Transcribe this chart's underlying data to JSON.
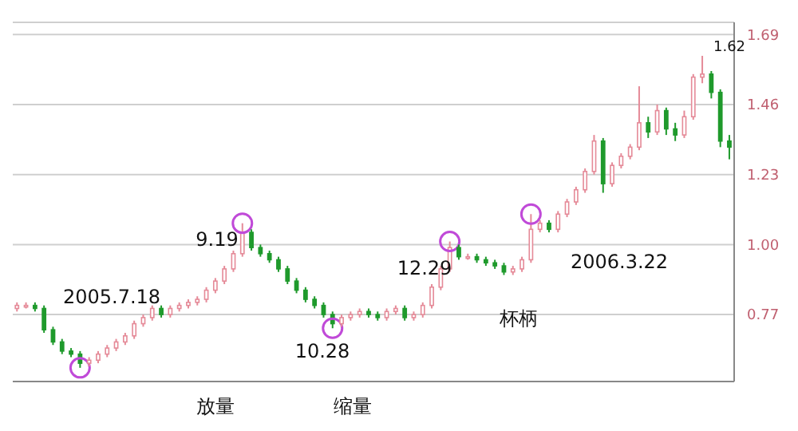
{
  "chart_data": {
    "type": "candlestick",
    "categories": [
      null,
      null,
      null,
      null,
      null,
      null,
      null,
      null,
      null,
      null,
      null,
      null,
      null,
      null,
      null,
      null,
      null,
      null,
      null,
      null,
      null,
      null,
      null,
      null,
      null,
      null,
      null,
      null,
      null,
      null,
      null,
      null,
      null,
      null,
      null,
      null,
      null,
      null,
      null,
      null,
      null,
      null,
      null,
      null,
      null,
      null,
      null,
      null,
      null,
      null,
      null,
      null,
      null,
      null,
      null,
      null,
      null,
      null,
      null,
      null,
      null,
      null,
      null,
      null,
      null,
      null,
      null,
      null,
      null,
      null,
      null,
      null,
      null,
      null,
      null,
      null,
      null,
      null,
      null,
      null
    ],
    "ohlc": [
      [
        0.79,
        0.81,
        0.78,
        0.8
      ],
      [
        0.8,
        0.81,
        0.79,
        0.8
      ],
      [
        0.8,
        0.81,
        0.78,
        0.79
      ],
      [
        0.79,
        0.8,
        0.71,
        0.72
      ],
      [
        0.72,
        0.73,
        0.67,
        0.68
      ],
      [
        0.68,
        0.69,
        0.64,
        0.65
      ],
      [
        0.65,
        0.66,
        0.63,
        0.64
      ],
      [
        0.64,
        0.65,
        0.595,
        0.61
      ],
      [
        0.61,
        0.63,
        0.6,
        0.62
      ],
      [
        0.62,
        0.65,
        0.61,
        0.64
      ],
      [
        0.64,
        0.67,
        0.63,
        0.66
      ],
      [
        0.66,
        0.69,
        0.65,
        0.68
      ],
      [
        0.68,
        0.71,
        0.67,
        0.7
      ],
      [
        0.7,
        0.75,
        0.69,
        0.74
      ],
      [
        0.74,
        0.77,
        0.73,
        0.76
      ],
      [
        0.76,
        0.8,
        0.75,
        0.79
      ],
      [
        0.79,
        0.8,
        0.76,
        0.77
      ],
      [
        0.77,
        0.8,
        0.76,
        0.79
      ],
      [
        0.79,
        0.81,
        0.78,
        0.8
      ],
      [
        0.8,
        0.82,
        0.79,
        0.81
      ],
      [
        0.81,
        0.83,
        0.8,
        0.82
      ],
      [
        0.82,
        0.86,
        0.81,
        0.85
      ],
      [
        0.85,
        0.89,
        0.84,
        0.88
      ],
      [
        0.88,
        0.93,
        0.87,
        0.92
      ],
      [
        0.92,
        0.98,
        0.91,
        0.97
      ],
      [
        0.97,
        1.07,
        0.96,
        1.04
      ],
      [
        1.04,
        1.05,
        0.98,
        0.99
      ],
      [
        0.99,
        1.0,
        0.96,
        0.97
      ],
      [
        0.97,
        0.98,
        0.94,
        0.95
      ],
      [
        0.95,
        0.96,
        0.91,
        0.92
      ],
      [
        0.92,
        0.93,
        0.87,
        0.88
      ],
      [
        0.88,
        0.89,
        0.84,
        0.85
      ],
      [
        0.85,
        0.86,
        0.81,
        0.82
      ],
      [
        0.82,
        0.83,
        0.79,
        0.8
      ],
      [
        0.8,
        0.81,
        0.76,
        0.77
      ],
      [
        0.77,
        0.78,
        0.725,
        0.74
      ],
      [
        0.74,
        0.77,
        0.73,
        0.76
      ],
      [
        0.76,
        0.78,
        0.75,
        0.77
      ],
      [
        0.77,
        0.79,
        0.76,
        0.78
      ],
      [
        0.78,
        0.79,
        0.76,
        0.77
      ],
      [
        0.77,
        0.78,
        0.75,
        0.76
      ],
      [
        0.76,
        0.79,
        0.75,
        0.78
      ],
      [
        0.78,
        0.8,
        0.77,
        0.79
      ],
      [
        0.79,
        0.8,
        0.75,
        0.76
      ],
      [
        0.76,
        0.78,
        0.75,
        0.77
      ],
      [
        0.77,
        0.81,
        0.76,
        0.8
      ],
      [
        0.8,
        0.87,
        0.79,
        0.86
      ],
      [
        0.86,
        0.93,
        0.85,
        0.92
      ],
      [
        0.92,
        1.01,
        0.91,
        0.99
      ],
      [
        0.99,
        1.0,
        0.95,
        0.96
      ],
      [
        0.96,
        0.97,
        0.95,
        0.96
      ],
      [
        0.96,
        0.97,
        0.94,
        0.95
      ],
      [
        0.95,
        0.96,
        0.93,
        0.94
      ],
      [
        0.94,
        0.95,
        0.92,
        0.93
      ],
      [
        0.93,
        0.94,
        0.9,
        0.91
      ],
      [
        0.91,
        0.93,
        0.9,
        0.92
      ],
      [
        0.92,
        0.96,
        0.91,
        0.95
      ],
      [
        0.95,
        1.1,
        0.94,
        1.05
      ],
      [
        1.05,
        1.08,
        1.04,
        1.07
      ],
      [
        1.07,
        1.08,
        1.04,
        1.05
      ],
      [
        1.05,
        1.11,
        1.04,
        1.1
      ],
      [
        1.1,
        1.15,
        1.09,
        1.14
      ],
      [
        1.14,
        1.19,
        1.13,
        1.18
      ],
      [
        1.18,
        1.25,
        1.17,
        1.24
      ],
      [
        1.24,
        1.36,
        1.23,
        1.34
      ],
      [
        1.34,
        1.35,
        1.17,
        1.2
      ],
      [
        1.2,
        1.27,
        1.19,
        1.26
      ],
      [
        1.26,
        1.3,
        1.25,
        1.29
      ],
      [
        1.29,
        1.33,
        1.28,
        1.32
      ],
      [
        1.32,
        1.52,
        1.31,
        1.4
      ],
      [
        1.4,
        1.42,
        1.35,
        1.37
      ],
      [
        1.37,
        1.46,
        1.36,
        1.44
      ],
      [
        1.44,
        1.45,
        1.36,
        1.38
      ],
      [
        1.38,
        1.4,
        1.34,
        1.36
      ],
      [
        1.36,
        1.44,
        1.35,
        1.42
      ],
      [
        1.42,
        1.56,
        1.41,
        1.55
      ],
      [
        1.55,
        1.62,
        1.53,
        1.56
      ],
      [
        1.56,
        1.57,
        1.48,
        1.5
      ],
      [
        1.5,
        1.51,
        1.32,
        1.34
      ],
      [
        1.34,
        1.36,
        1.28,
        1.32
      ]
    ],
    "ylim": [
      0.55,
      1.73
    ],
    "yticks": [
      0.77,
      {
        "value": 1,
        "label": "1.00"
      },
      1.23,
      1.46,
      1.69
    ],
    "grid": "y",
    "tick_labels": "y",
    "annotations": [
      "2005.7.18",
      "9.19",
      "10.28",
      "12.29",
      "2006.3.22",
      "杯柄",
      "1.62",
      "放量",
      "缩量"
    ]
  }
}
